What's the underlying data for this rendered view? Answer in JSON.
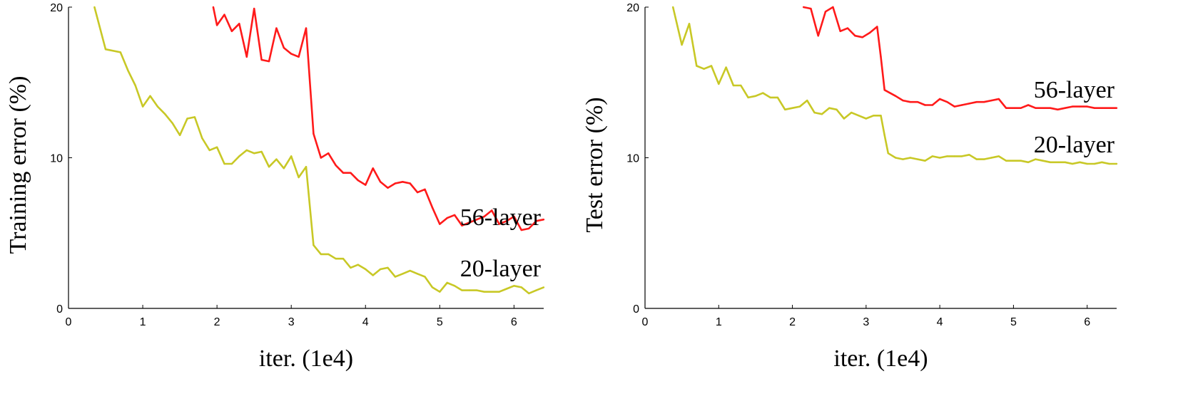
{
  "chart_data": [
    {
      "type": "line",
      "xlabel": "iter. (1e4)",
      "ylabel": "Training error (%)",
      "xlim": [
        0,
        6.4
      ],
      "ylim": [
        0,
        20
      ],
      "xticks": [
        0,
        1,
        2,
        3,
        4,
        5,
        6
      ],
      "yticks": [
        0,
        10,
        20
      ],
      "grid": false,
      "series": [
        {
          "name": "56-layer",
          "color": "#ff1a1a",
          "x": [
            1.95,
            2.0,
            2.1,
            2.2,
            2.3,
            2.4,
            2.5,
            2.6,
            2.7,
            2.8,
            2.9,
            3.0,
            3.1,
            3.2,
            3.3,
            3.4,
            3.5,
            3.6,
            3.7,
            3.8,
            3.9,
            4.0,
            4.1,
            4.2,
            4.3,
            4.4,
            4.5,
            4.6,
            4.7,
            4.8,
            4.9,
            5.0,
            5.1,
            5.2,
            5.3,
            5.4,
            5.5,
            5.6,
            5.7,
            5.8,
            5.9,
            6.0,
            6.1,
            6.2,
            6.3,
            6.4
          ],
          "y": [
            20.0,
            18.8,
            19.5,
            18.4,
            18.9,
            16.7,
            19.9,
            16.5,
            16.4,
            18.6,
            17.3,
            16.9,
            16.7,
            18.6,
            11.6,
            10.0,
            10.3,
            9.5,
            9.0,
            9.0,
            8.5,
            8.2,
            9.3,
            8.4,
            8.0,
            8.3,
            8.4,
            8.3,
            7.7,
            7.9,
            6.7,
            5.6,
            6.0,
            6.2,
            5.5,
            5.7,
            5.9,
            6.1,
            6.5,
            5.6,
            5.8,
            6.1,
            5.2,
            5.3,
            5.8,
            5.9
          ]
        },
        {
          "name": "20-layer",
          "color": "#c8c826",
          "x": [
            0.35,
            0.5,
            0.7,
            0.8,
            0.9,
            1.0,
            1.1,
            1.2,
            1.3,
            1.4,
            1.5,
            1.6,
            1.7,
            1.8,
            1.9,
            2.0,
            2.1,
            2.2,
            2.3,
            2.4,
            2.5,
            2.6,
            2.7,
            2.8,
            2.9,
            3.0,
            3.1,
            3.2,
            3.3,
            3.4,
            3.5,
            3.6,
            3.7,
            3.8,
            3.9,
            4.0,
            4.1,
            4.2,
            4.3,
            4.4,
            4.5,
            4.6,
            4.7,
            4.8,
            4.9,
            5.0,
            5.1,
            5.2,
            5.3,
            5.4,
            5.5,
            5.6,
            5.7,
            5.8,
            5.9,
            6.0,
            6.1,
            6.2,
            6.3,
            6.4
          ],
          "y": [
            20.0,
            17.2,
            17.0,
            15.8,
            14.8,
            13.4,
            14.1,
            13.4,
            12.9,
            12.3,
            11.5,
            12.6,
            12.7,
            11.3,
            10.5,
            10.7,
            9.6,
            9.6,
            10.1,
            10.5,
            10.3,
            10.4,
            9.4,
            9.9,
            9.3,
            10.1,
            8.7,
            9.4,
            4.2,
            3.6,
            3.6,
            3.3,
            3.3,
            2.7,
            2.9,
            2.6,
            2.2,
            2.6,
            2.7,
            2.1,
            2.3,
            2.5,
            2.3,
            2.1,
            1.4,
            1.1,
            1.7,
            1.5,
            1.2,
            1.2,
            1.2,
            1.1,
            1.1,
            1.1,
            1.3,
            1.5,
            1.4,
            1.0,
            1.2,
            1.4
          ]
        }
      ]
    },
    {
      "type": "line",
      "xlabel": "iter. (1e4)",
      "ylabel": "Test error (%)",
      "xlim": [
        0,
        6.4
      ],
      "ylim": [
        0,
        20
      ],
      "xticks": [
        0,
        1,
        2,
        3,
        4,
        5,
        6
      ],
      "yticks": [
        0,
        10,
        20
      ],
      "grid": false,
      "series": [
        {
          "name": "56-layer",
          "color": "#ff1a1a",
          "x": [
            2.15,
            2.25,
            2.35,
            2.45,
            2.55,
            2.65,
            2.75,
            2.85,
            2.95,
            3.05,
            3.15,
            3.2,
            3.25,
            3.4,
            3.5,
            3.6,
            3.7,
            3.8,
            3.9,
            4.0,
            4.1,
            4.2,
            4.3,
            4.4,
            4.5,
            4.6,
            4.7,
            4.8,
            4.9,
            5.0,
            5.1,
            5.2,
            5.3,
            5.4,
            5.5,
            5.6,
            5.7,
            5.8,
            5.9,
            6.0,
            6.1,
            6.2,
            6.3,
            6.4
          ],
          "y": [
            20.0,
            19.9,
            18.1,
            19.7,
            20.0,
            18.4,
            18.6,
            18.1,
            18.0,
            18.3,
            18.7,
            16.7,
            14.5,
            14.1,
            13.8,
            13.7,
            13.7,
            13.5,
            13.5,
            13.9,
            13.7,
            13.4,
            13.5,
            13.6,
            13.7,
            13.7,
            13.8,
            13.9,
            13.3,
            13.3,
            13.3,
            13.5,
            13.3,
            13.3,
            13.3,
            13.2,
            13.3,
            13.4,
            13.4,
            13.4,
            13.3,
            13.3,
            13.3,
            13.3
          ]
        },
        {
          "name": "20-layer",
          "color": "#c8c826",
          "x": [
            0.38,
            0.5,
            0.6,
            0.7,
            0.8,
            0.9,
            1.0,
            1.1,
            1.2,
            1.3,
            1.4,
            1.5,
            1.6,
            1.7,
            1.8,
            1.9,
            2.0,
            2.1,
            2.2,
            2.3,
            2.4,
            2.5,
            2.6,
            2.7,
            2.8,
            2.9,
            3.0,
            3.1,
            3.2,
            3.25,
            3.3,
            3.4,
            3.5,
            3.6,
            3.7,
            3.8,
            3.9,
            4.0,
            4.1,
            4.2,
            4.3,
            4.4,
            4.5,
            4.6,
            4.7,
            4.8,
            4.9,
            5.0,
            5.1,
            5.2,
            5.3,
            5.4,
            5.5,
            5.6,
            5.7,
            5.8,
            5.9,
            6.0,
            6.1,
            6.2,
            6.3,
            6.4
          ],
          "y": [
            20.0,
            17.5,
            18.9,
            16.1,
            15.9,
            16.1,
            14.9,
            16.0,
            14.8,
            14.8,
            14.0,
            14.1,
            14.3,
            14.0,
            14.0,
            13.2,
            13.3,
            13.4,
            13.8,
            13.0,
            12.9,
            13.3,
            13.2,
            12.6,
            13.0,
            12.8,
            12.6,
            12.8,
            12.8,
            11.5,
            10.3,
            10.0,
            9.9,
            10.0,
            9.9,
            9.8,
            10.1,
            10.0,
            10.1,
            10.1,
            10.1,
            10.2,
            9.9,
            9.9,
            10.0,
            10.1,
            9.8,
            9.8,
            9.8,
            9.7,
            9.9,
            9.8,
            9.7,
            9.7,
            9.7,
            9.6,
            9.7,
            9.6,
            9.6,
            9.7,
            9.6,
            9.6
          ]
        }
      ]
    }
  ]
}
